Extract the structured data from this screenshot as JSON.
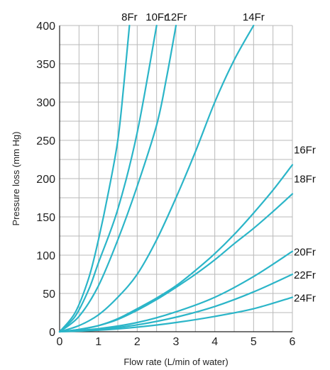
{
  "chart_data": {
    "type": "line",
    "xlabel": "Flow rate (L/min of water)",
    "ylabel": "Pressure loss (mm Hg)",
    "xlim": [
      0,
      6
    ],
    "ylim": [
      0,
      400
    ],
    "x_ticks": [
      0,
      1,
      2,
      3,
      4,
      5,
      6
    ],
    "y_ticks": [
      0,
      50,
      100,
      150,
      200,
      250,
      300,
      350,
      400
    ],
    "x_grid_step": 0.5,
    "y_grid_step": 25,
    "grid": true,
    "line_color": "#2bb5c8",
    "series": [
      {
        "name": "8Fr",
        "label_pos": "top",
        "points": [
          [
            0,
            0
          ],
          [
            0.4,
            25
          ],
          [
            0.75,
            70
          ],
          [
            1,
            120
          ],
          [
            1.25,
            180
          ],
          [
            1.5,
            250
          ],
          [
            1.65,
            320
          ],
          [
            1.8,
            400
          ]
        ]
      },
      {
        "name": "10Fr",
        "label_pos": "top",
        "points": [
          [
            0,
            0
          ],
          [
            0.4,
            20
          ],
          [
            0.75,
            55
          ],
          [
            1,
            90
          ],
          [
            1.5,
            160
          ],
          [
            2,
            260
          ],
          [
            2.5,
            400
          ]
        ]
      },
      {
        "name": "12Fr",
        "label_pos": "top",
        "points": [
          [
            0,
            0
          ],
          [
            0.5,
            20
          ],
          [
            1,
            60
          ],
          [
            1.5,
            120
          ],
          [
            2,
            190
          ],
          [
            2.5,
            270
          ],
          [
            2.75,
            330
          ],
          [
            3,
            400
          ]
        ]
      },
      {
        "name": "14Fr",
        "label_pos": "top",
        "points": [
          [
            0,
            0
          ],
          [
            0.5,
            8
          ],
          [
            1,
            22
          ],
          [
            1.5,
            45
          ],
          [
            2,
            75
          ],
          [
            2.5,
            120
          ],
          [
            3,
            175
          ],
          [
            3.5,
            235
          ],
          [
            4,
            300
          ],
          [
            4.5,
            355
          ],
          [
            5,
            400
          ]
        ]
      },
      {
        "name": "16Fr",
        "label_pos": "right",
        "points": [
          [
            0,
            0
          ],
          [
            0.5,
            3
          ],
          [
            1,
            8
          ],
          [
            1.5,
            17
          ],
          [
            2,
            30
          ],
          [
            2.5,
            44
          ],
          [
            3,
            60
          ],
          [
            3.5,
            80
          ],
          [
            4,
            102
          ],
          [
            4.5,
            127
          ],
          [
            5,
            155
          ],
          [
            5.5,
            185
          ],
          [
            6,
            218
          ]
        ]
      },
      {
        "name": "18Fr",
        "label_pos": "right",
        "points": [
          [
            0,
            0
          ],
          [
            0.5,
            3
          ],
          [
            1,
            8
          ],
          [
            1.5,
            16
          ],
          [
            2,
            28
          ],
          [
            2.5,
            42
          ],
          [
            3,
            58
          ],
          [
            3.5,
            75
          ],
          [
            4,
            94
          ],
          [
            4.5,
            115
          ],
          [
            5,
            135
          ],
          [
            5.5,
            157
          ],
          [
            6,
            180
          ]
        ]
      },
      {
        "name": "20Fr",
        "label_pos": "right",
        "points": [
          [
            0,
            0
          ],
          [
            1,
            4
          ],
          [
            2,
            12
          ],
          [
            3,
            26
          ],
          [
            4,
            45
          ],
          [
            5,
            72
          ],
          [
            6,
            105
          ]
        ]
      },
      {
        "name": "22Fr",
        "label_pos": "right",
        "points": [
          [
            0,
            0
          ],
          [
            1,
            3
          ],
          [
            2,
            9
          ],
          [
            3,
            19
          ],
          [
            4,
            33
          ],
          [
            5,
            52
          ],
          [
            6,
            75
          ]
        ]
      },
      {
        "name": "24Fr",
        "label_pos": "right",
        "points": [
          [
            0,
            0
          ],
          [
            1,
            2
          ],
          [
            2,
            6
          ],
          [
            3,
            12
          ],
          [
            4,
            20
          ],
          [
            5,
            30
          ],
          [
            6,
            45
          ]
        ]
      }
    ]
  }
}
